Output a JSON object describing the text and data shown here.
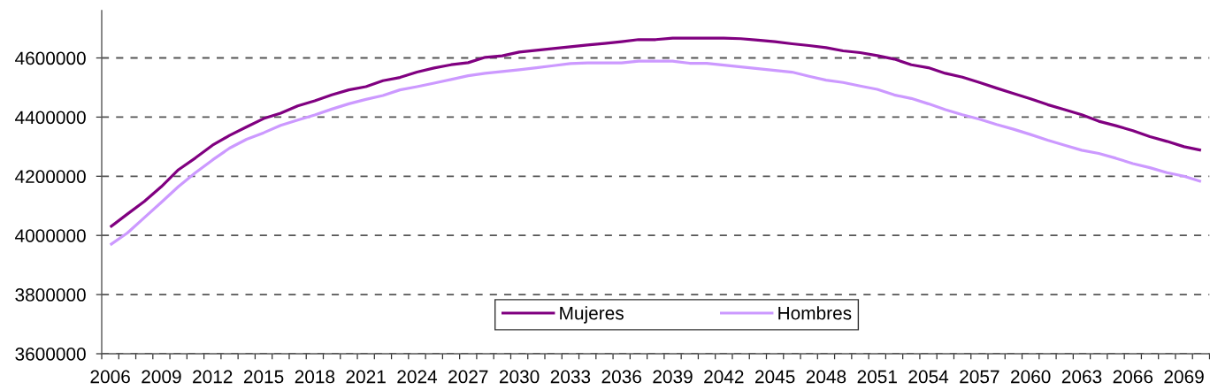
{
  "chart_data": {
    "type": "line",
    "categories": [
      "2006",
      null,
      null,
      "2009",
      null,
      null,
      "2012",
      null,
      null,
      "2015",
      null,
      null,
      "2018",
      null,
      null,
      "2021",
      null,
      null,
      "2024",
      null,
      null,
      "2027",
      null,
      null,
      "2030",
      null,
      null,
      "2033",
      null,
      null,
      "2036",
      null,
      null,
      "2039",
      null,
      null,
      "2042",
      null,
      null,
      "2045",
      null,
      null,
      "2048",
      null,
      null,
      "2051",
      null,
      null,
      "2054",
      null,
      null,
      "2057",
      null,
      null,
      "2060",
      null,
      null,
      "2063",
      null,
      null,
      "2066",
      null,
      null,
      "2069",
      null
    ],
    "series": [
      {
        "name": "Mujeres",
        "color": "#800080",
        "values": [
          4028000,
          4072000,
          4115000,
          4165000,
          4222000,
          4262000,
          4305000,
          4338000,
          4367000,
          4395000,
          4413000,
          4438000,
          4455000,
          4475000,
          4492000,
          4503000,
          4523000,
          4534000,
          4552000,
          4566000,
          4577000,
          4584000,
          4602000,
          4607000,
          4620000,
          4626000,
          4632000,
          4638000,
          4644000,
          4649000,
          4655000,
          4662000,
          4662000,
          4667000,
          4667000,
          4667000,
          4667000,
          4665000,
          4660000,
          4655000,
          4648000,
          4642000,
          4635000,
          4624000,
          4618000,
          4608000,
          4596000,
          4577000,
          4567000,
          4548000,
          4535000,
          4517000,
          4498000,
          4480000,
          4462000,
          4442000,
          4425000,
          4408000,
          4386000,
          4371000,
          4354000,
          4334000,
          4318000,
          4300000,
          4288000
        ]
      },
      {
        "name": "Hombres",
        "color": "#cc99ff",
        "values": [
          3968000,
          4008000,
          4060000,
          4112000,
          4165000,
          4212000,
          4255000,
          4295000,
          4325000,
          4347000,
          4372000,
          4390000,
          4407000,
          4427000,
          4445000,
          4460000,
          4473000,
          4492000,
          4503000,
          4515000,
          4527000,
          4540000,
          4548000,
          4554000,
          4560000,
          4567000,
          4574000,
          4581000,
          4583000,
          4583000,
          4583000,
          4589000,
          4589000,
          4589000,
          4582000,
          4582000,
          4576000,
          4570000,
          4564000,
          4558000,
          4552000,
          4538000,
          4525000,
          4517000,
          4505000,
          4494000,
          4475000,
          4463000,
          4445000,
          4425000,
          4408000,
          4393000,
          4375000,
          4359000,
          4341000,
          4322000,
          4305000,
          4288000,
          4277000,
          4261000,
          4243000,
          4229000,
          4212000,
          4200000,
          4182000
        ]
      }
    ],
    "ylim": [
      3600000,
      4760000
    ],
    "yticks": [
      3600000,
      3800000,
      4000000,
      4200000,
      4400000,
      4600000
    ],
    "grid": "y",
    "legend": "bottom",
    "line_style": "solid"
  }
}
